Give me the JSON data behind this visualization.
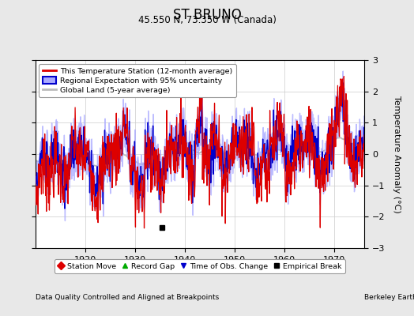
{
  "title": "ST BRUNO",
  "subtitle": "45.550 N, 73.350 W (Canada)",
  "xlabel_left": "Data Quality Controlled and Aligned at Breakpoints",
  "xlabel_right": "Berkeley Earth",
  "ylabel": "Temperature Anomaly (°C)",
  "xlim": [
    1910,
    1976
  ],
  "ylim": [
    -3,
    3
  ],
  "yticks": [
    -3,
    -2,
    -1,
    0,
    1,
    2,
    3
  ],
  "xticks": [
    1920,
    1930,
    1940,
    1950,
    1960,
    1970
  ],
  "background_color": "#e8e8e8",
  "plot_bg_color": "#ffffff",
  "grid_color": "#cccccc",
  "station_color": "#dd0000",
  "regional_line_color": "#0000cc",
  "regional_fill_color": "#aaaaff",
  "global_color": "#bbbbbb",
  "empirical_break_year": 1935.5,
  "empirical_break_value": -2.35,
  "legend_entries": [
    {
      "label": "This Temperature Station (12-month average)",
      "color": "#dd0000",
      "lw": 2
    },
    {
      "label": "Regional Expectation with 95% uncertainty",
      "color": "#0000cc",
      "fill": "#aaaaff"
    },
    {
      "label": "Global Land (5-year average)",
      "color": "#bbbbbb",
      "lw": 2
    }
  ],
  "marker_legend": [
    {
      "label": "Station Move",
      "marker": "D",
      "color": "#dd0000"
    },
    {
      "label": "Record Gap",
      "marker": "^",
      "color": "#00aa00"
    },
    {
      "label": "Time of Obs. Change",
      "marker": "v",
      "color": "#0000cc"
    },
    {
      "label": "Empirical Break",
      "marker": "s",
      "color": "#000000"
    }
  ]
}
